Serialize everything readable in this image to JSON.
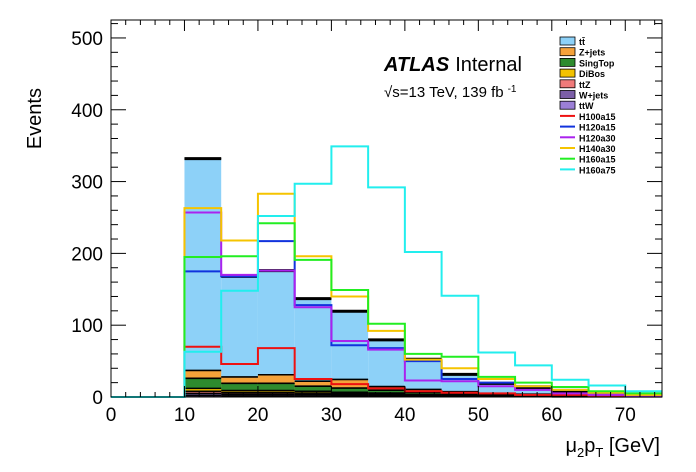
{
  "chart_data": {
    "type": "histogram",
    "experiment_label": "ATLAS",
    "status_label": "Internal",
    "energy_label": "√s=13 TeV, 139 fb",
    "lumi_exponent": "-1",
    "xlabel_main": "μ",
    "xlabel_sub1": "2",
    "xlabel_mid": "p",
    "xlabel_sub2": "T",
    "xlabel_unit": " [GeV]",
    "ylabel": "Events",
    "xlim": [
      0,
      75
    ],
    "ylim": [
      0,
      525
    ],
    "xticks": [
      0,
      10,
      20,
      30,
      40,
      50,
      60,
      70
    ],
    "yticks": [
      0,
      100,
      200,
      300,
      400,
      500
    ],
    "bin_edges": [
      0,
      5,
      10,
      15,
      20,
      25,
      30,
      35,
      40,
      45,
      50,
      55,
      60,
      65,
      70,
      75
    ],
    "stack": [
      {
        "name": "ttW",
        "color": "#9b7fd6",
        "values": [
          0,
          0,
          2,
          1.5,
          1.5,
          1.5,
          1,
          1,
          0.5,
          0.5,
          0.5,
          0.5,
          0.3,
          0.2,
          0.2
        ]
      },
      {
        "name": "W+jets",
        "color": "#7b5ea7",
        "values": [
          0,
          0,
          3,
          2,
          2,
          2,
          1.5,
          1.5,
          1,
          1,
          0.5,
          0.5,
          0.3,
          0.3,
          0.2
        ]
      },
      {
        "name": "ttZ",
        "color": "#f07a7a",
        "values": [
          0,
          0,
          3,
          2.5,
          2.5,
          2,
          2,
          1.5,
          1,
          1,
          0.5,
          0.5,
          0.3,
          0.3,
          0.2
        ]
      },
      {
        "name": "DiBos",
        "color": "#f2c200",
        "values": [
          0,
          0,
          4,
          3,
          3,
          2.5,
          2,
          1.5,
          1,
          1,
          0.5,
          0.5,
          0.3,
          0.2,
          0.2
        ]
      },
      {
        "name": "SingTop",
        "color": "#2e8b2e",
        "values": [
          0,
          0,
          14,
          10,
          10,
          7,
          6,
          4,
          3,
          2,
          1.5,
          1,
          0.8,
          0.5,
          0.3
        ]
      },
      {
        "name": "Z+jets",
        "color": "#f5a23a",
        "values": [
          0,
          0,
          11,
          9,
          12,
          7,
          12,
          5,
          4,
          2,
          1.5,
          1,
          1,
          0.5,
          0.5
        ]
      },
      {
        "name": "tt̄",
        "color": "#8dd1f8",
        "values": [
          0,
          0,
          295,
          140,
          145,
          115,
          95,
          65,
          42,
          24,
          14,
          8,
          5,
          3,
          2
        ]
      }
    ],
    "legend_order": [
      "tt̄",
      "Z+jets",
      "SingTop",
      "DiBos",
      "ttZ",
      "W+jets",
      "ttW"
    ],
    "signals": [
      {
        "name": "H100a15",
        "color": "#ee1111",
        "values": [
          0,
          0,
          70,
          46,
          68,
          25,
          18,
          12,
          8,
          6,
          5,
          3,
          3,
          2,
          2
        ]
      },
      {
        "name": "H120a15",
        "color": "#1133dd",
        "values": [
          0,
          0,
          175,
          168,
          217,
          128,
          72,
          68,
          50,
          25,
          20,
          15,
          10,
          5,
          5
        ]
      },
      {
        "name": "H120a30",
        "color": "#aa22ee",
        "values": [
          0,
          0,
          257,
          170,
          176,
          125,
          78,
          66,
          23,
          22,
          15,
          10,
          5,
          3,
          2
        ]
      },
      {
        "name": "H140a30",
        "color": "#f5c400",
        "values": [
          0,
          0,
          263,
          218,
          283,
          196,
          140,
          92,
          52,
          40,
          25,
          15,
          10,
          6,
          3
        ]
      },
      {
        "name": "H160a15",
        "color": "#22ee22",
        "values": [
          0,
          0,
          195,
          196,
          242,
          191,
          149,
          102,
          60,
          56,
          28,
          20,
          14,
          8,
          5
        ]
      },
      {
        "name": "H160a75",
        "color": "#22eeee",
        "values": [
          0,
          0,
          63,
          148,
          252,
          297,
          349,
          292,
          202,
          141,
          62,
          44,
          24,
          16,
          8
        ]
      }
    ]
  }
}
